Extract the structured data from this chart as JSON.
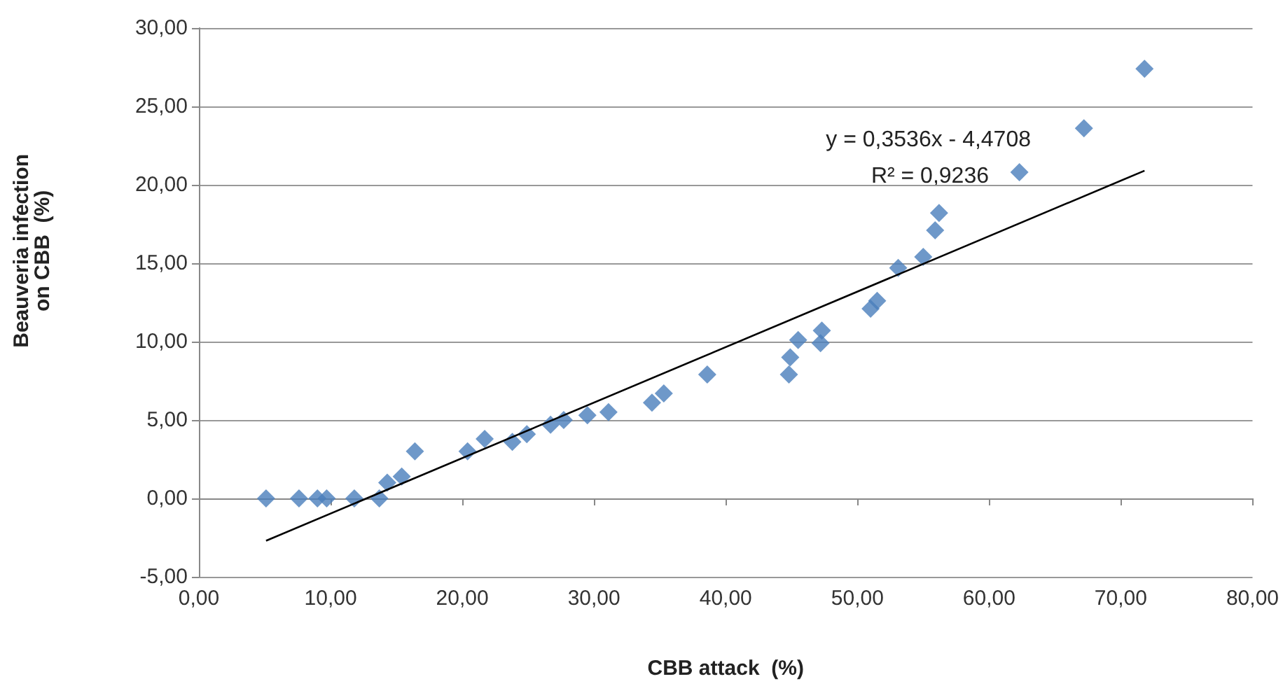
{
  "chart_data": {
    "type": "scatter",
    "xlabel": "CBB attack  (%)",
    "ylabel": "Beauveria infection\non CBB  (%)",
    "annotations": [
      "y = 0,3536x - 4,4708",
      "R² = 0,9236"
    ],
    "series": [
      {
        "color": "#4a7ebb",
        "marker": "diamond",
        "x": [
          5.1,
          7.6,
          9.0,
          9.7,
          11.8,
          13.7,
          14.3,
          15.4,
          16.4,
          20.4,
          21.7,
          23.8,
          24.9,
          26.7,
          27.7,
          29.5,
          31.1,
          34.4,
          35.3,
          38.6,
          44.8,
          44.9,
          45.5,
          47.2,
          47.3,
          51.0,
          51.5,
          53.1,
          55.0,
          55.9,
          56.2,
          62.3,
          67.2,
          71.8
        ],
        "values": [
          0,
          0,
          0,
          0,
          0,
          0,
          1.0,
          1.4,
          3.0,
          3.0,
          3.8,
          3.6,
          4.1,
          4.7,
          5.0,
          5.3,
          5.5,
          6.1,
          6.7,
          7.9,
          7.9,
          9.0,
          10.1,
          9.9,
          10.7,
          12.1,
          12.6,
          14.7,
          15.4,
          17.1,
          18.2,
          20.8,
          23.6,
          27.4
        ]
      },
      {
        "type": "line",
        "color": "#000000",
        "marker": "none",
        "x": [
          5.1,
          71.8
        ],
        "values": [
          -2.7,
          20.9
        ]
      }
    ],
    "xlim": [
      0,
      80
    ],
    "xticks": [
      {
        "value": 0,
        "label": "0,00"
      },
      {
        "value": 10,
        "label": "10,00"
      },
      {
        "value": 20,
        "label": "20,00"
      },
      {
        "value": 30,
        "label": "30,00"
      },
      {
        "value": 40,
        "label": "40,00"
      },
      {
        "value": 50,
        "label": "50,00"
      },
      {
        "value": 60,
        "label": "60,00"
      },
      {
        "value": 70,
        "label": "70,00"
      },
      {
        "value": 80,
        "label": "80,00"
      }
    ],
    "ylim": [
      -5,
      30
    ],
    "yticks": [
      {
        "value": -5,
        "label": "-5,00"
      },
      {
        "value": 0,
        "label": "0,00"
      },
      {
        "value": 5,
        "label": "5,00"
      },
      {
        "value": 10,
        "label": "10,00"
      },
      {
        "value": 15,
        "label": "15,00"
      },
      {
        "value": 20,
        "label": "20,00"
      },
      {
        "value": 25,
        "label": "25,00"
      },
      {
        "value": 30,
        "label": "30,00"
      }
    ],
    "grid": "y"
  }
}
